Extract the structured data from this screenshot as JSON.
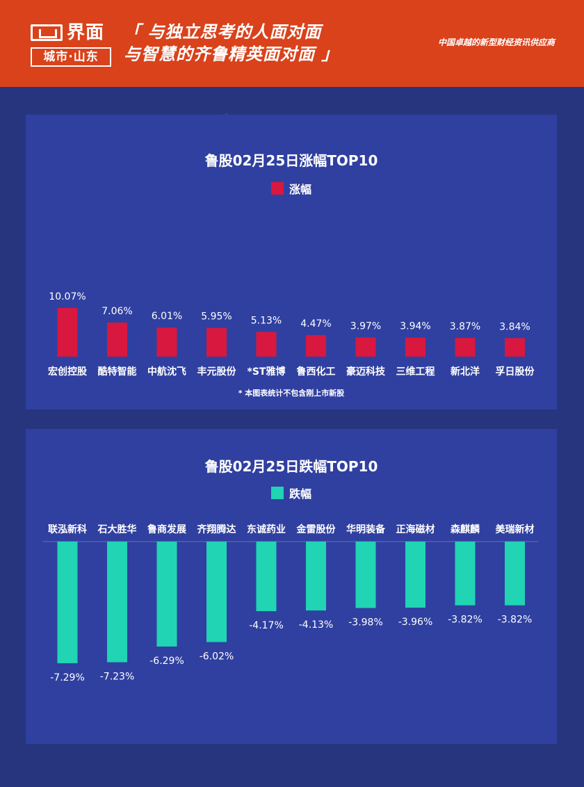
{
  "header": {
    "logo_word": "界面",
    "logo_sub": "城市·山东",
    "slogan_line1": "「 与独立思考的人面对面",
    "slogan_line2": "与智慧的齐鲁精英面对面 」",
    "tagline": "中国卓越的新型财经资讯供应商"
  },
  "colors": {
    "header_bg": "#d9421b",
    "page_bg": "#27357f",
    "panel_bg": "#3040a0",
    "up_bar": "#d8183f",
    "down_bar": "#20d4b4"
  },
  "chart_data": [
    {
      "type": "bar",
      "title": "鲁股02月25日涨幅TOP10",
      "legend": "涨幅",
      "footnote": "* 本图表统计不包含刚上市新股",
      "categories": [
        "宏创控股",
        "酷特智能",
        "中航沈飞",
        "丰元股份",
        "*ST雅博",
        "鲁西化工",
        "豪迈科技",
        "三维工程",
        "新北洋",
        "孚日股份"
      ],
      "values": [
        10.07,
        7.06,
        6.01,
        5.95,
        5.13,
        4.47,
        3.97,
        3.94,
        3.87,
        3.84
      ],
      "labels": [
        "10.07%",
        "7.06%",
        "6.01%",
        "5.95%",
        "5.13%",
        "4.47%",
        "3.97%",
        "3.94%",
        "3.87%",
        "3.84%"
      ],
      "unit": "%",
      "color": "#d8183f"
    },
    {
      "type": "bar",
      "title": "鲁股02月25日跌幅TOP10",
      "legend": "跌幅",
      "categories": [
        "联泓新科",
        "石大胜华",
        "鲁商发展",
        "齐翔腾达",
        "东诚药业",
        "金雷股份",
        "华明装备",
        "正海磁材",
        "森麒麟",
        "美瑞新材"
      ],
      "values": [
        -7.29,
        -7.23,
        -6.29,
        -6.02,
        -4.17,
        -4.13,
        -3.98,
        -3.96,
        -3.82,
        -3.82
      ],
      "labels": [
        "-7.29%",
        "-7.23%",
        "-6.29%",
        "-6.02%",
        "-4.17%",
        "-4.13%",
        "-3.98%",
        "-3.96%",
        "-3.82%",
        "-3.82%"
      ],
      "unit": "%",
      "color": "#20d4b4"
    }
  ]
}
